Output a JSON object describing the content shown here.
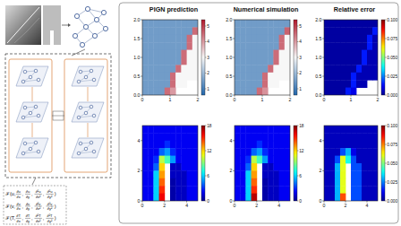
{
  "columns": [
    "PIGN prediction",
    "Numerical simulation",
    "Relative error"
  ],
  "equations": [
    [
      "ℱ(u,",
      {
        "num": "∂u",
        "den": "∂x"
      },
      ",",
      {
        "num": "∂u",
        "den": "∂y"
      },
      ",",
      {
        "num": "∂²u",
        "den": "∂x²"
      },
      ",",
      {
        "num": "∂²u",
        "den": "∂y²"
      },
      ")"
    ],
    [
      "ℱ(v,",
      {
        "num": "∂v",
        "den": "∂x"
      },
      ",",
      {
        "num": "∂v",
        "den": "∂y"
      },
      ",",
      {
        "num": "∂²v",
        "den": "∂x²"
      },
      ",",
      {
        "num": "∂²v",
        "den": "∂y²"
      },
      ")"
    ],
    [
      "ℱ(T,",
      {
        "num": "∂T",
        "den": "∂x"
      },
      ",",
      {
        "num": "∂T",
        "den": "∂y"
      },
      ",",
      {
        "num": "∂²T",
        "den": "∂x²"
      },
      ",",
      {
        "num": "∂²T",
        "den": "∂y²"
      },
      ")"
    ]
  ],
  "chart_data": [
    {
      "type": "heatmap",
      "xlim": [
        0,
        2
      ],
      "ylim": [
        0,
        2
      ],
      "xticks": [
        0,
        1,
        2
      ],
      "yticks": [
        {
          "value": 0,
          "label": "0.0"
        },
        {
          "value": 0.5,
          "label": "0.5"
        },
        {
          "value": 1,
          "label": "1.0"
        },
        {
          "value": 1.5,
          "label": "1.5"
        },
        {
          "value": 2,
          "label": "2.0"
        }
      ],
      "cells": [
        [
          1.5,
          1.5,
          1.5,
          1.5,
          1.5,
          1.5,
          1.5,
          1.5,
          1.5,
          1.5
        ],
        [
          1.5,
          1.5,
          1.5,
          1.5,
          1.5,
          1.5,
          1.5,
          1.5,
          1.5,
          4.5
        ],
        [
          1.5,
          1.5,
          1.5,
          1.5,
          1.5,
          1.5,
          1.5,
          1.5,
          4.5,
          3.0
        ],
        [
          1.5,
          1.5,
          1.5,
          1.5,
          1.5,
          1.5,
          1.5,
          1.5,
          4.5,
          3.0
        ],
        [
          1.5,
          1.5,
          1.5,
          1.5,
          1.5,
          1.5,
          1.5,
          4.5,
          3.0,
          3.0
        ],
        [
          1.5,
          1.5,
          1.5,
          1.5,
          1.5,
          1.5,
          1.5,
          4.5,
          3.0,
          3.0
        ],
        [
          1.5,
          1.5,
          1.5,
          1.5,
          1.5,
          1.5,
          4.5,
          3.0,
          3.0,
          3.0
        ],
        [
          1.5,
          1.5,
          1.5,
          1.5,
          1.5,
          4.5,
          3.0,
          3.0,
          3.0,
          3.0
        ],
        [
          1.5,
          1.5,
          1.5,
          1.5,
          1.5,
          4.5,
          3.0,
          3.0,
          null,
          null
        ],
        [
          1.5,
          1.5,
          1.5,
          1.5,
          4.5,
          4.0,
          null,
          null,
          null,
          null
        ]
      ],
      "colorbar": {
        "range": [
          0.6,
          5.4
        ],
        "ticks": [
          1,
          2,
          3,
          4,
          5
        ]
      }
    },
    {
      "type": "heatmap",
      "xlim": [
        0,
        2
      ],
      "ylim": [
        0,
        2
      ],
      "xticks": [
        0,
        1,
        2
      ],
      "yticks": [
        {
          "value": 0,
          "label": "0.0"
        },
        {
          "value": 0.5,
          "label": "0.5"
        },
        {
          "value": 1,
          "label": "1.0"
        },
        {
          "value": 1.5,
          "label": "1.5"
        },
        {
          "value": 2,
          "label": "2.0"
        }
      ],
      "cells": [
        [
          1.5,
          1.5,
          1.5,
          1.5,
          1.5,
          1.5,
          1.5,
          1.5,
          1.5,
          1.5
        ],
        [
          1.5,
          1.5,
          1.5,
          1.5,
          1.5,
          1.5,
          1.5,
          1.5,
          1.5,
          4.6
        ],
        [
          1.5,
          1.5,
          1.5,
          1.5,
          1.5,
          1.5,
          1.5,
          1.5,
          4.5,
          3.0
        ],
        [
          1.5,
          1.5,
          1.5,
          1.5,
          1.5,
          1.5,
          1.5,
          1.5,
          4.5,
          3.0
        ],
        [
          1.5,
          1.5,
          1.5,
          1.5,
          1.5,
          1.5,
          1.5,
          4.5,
          3.0,
          3.0
        ],
        [
          1.5,
          1.5,
          1.5,
          1.5,
          1.5,
          1.5,
          1.5,
          4.5,
          3.0,
          3.0
        ],
        [
          1.5,
          1.5,
          1.5,
          1.5,
          1.5,
          1.5,
          4.5,
          3.0,
          3.0,
          3.0
        ],
        [
          1.5,
          1.5,
          1.5,
          1.5,
          1.5,
          4.5,
          3.0,
          3.0,
          3.0,
          3.0
        ],
        [
          1.5,
          1.5,
          1.5,
          1.5,
          1.5,
          4.5,
          3.0,
          3.0,
          null,
          null
        ],
        [
          1.5,
          1.5,
          1.5,
          1.5,
          4.5,
          4.1,
          null,
          null,
          null,
          null
        ]
      ],
      "colorbar": {
        "range": [
          0.6,
          5.4
        ],
        "ticks": [
          1,
          2,
          3,
          4,
          5
        ]
      }
    },
    {
      "type": "heatmap",
      "xlim": [
        0,
        2
      ],
      "ylim": [
        0,
        2
      ],
      "xticks": [
        0,
        1,
        2
      ],
      "yticks": [
        {
          "value": 0,
          "label": "0.0"
        },
        {
          "value": 0.5,
          "label": "0.5"
        },
        {
          "value": 1,
          "label": "1.0"
        },
        {
          "value": 1.5,
          "label": "1.5"
        },
        {
          "value": 2,
          "label": "2.0"
        }
      ],
      "cells": [
        [
          0.002,
          0.002,
          0.002,
          0.002,
          0.002,
          0.002,
          0.002,
          0.002,
          0.002,
          0.002
        ],
        [
          0.002,
          0.002,
          0.002,
          0.002,
          0.002,
          0.002,
          0.002,
          0.002,
          0.002,
          0.015
        ],
        [
          0.002,
          0.002,
          0.002,
          0.002,
          0.002,
          0.002,
          0.002,
          0.002,
          0.015,
          0.004
        ],
        [
          0.002,
          0.002,
          0.002,
          0.002,
          0.002,
          0.002,
          0.002,
          0.002,
          0.015,
          0.004
        ],
        [
          0.002,
          0.002,
          0.002,
          0.002,
          0.002,
          0.002,
          0.002,
          0.015,
          0.004,
          0.004
        ],
        [
          0.002,
          0.002,
          0.002,
          0.002,
          0.002,
          0.002,
          0.002,
          0.015,
          0.004,
          0.004
        ],
        [
          0.002,
          0.002,
          0.002,
          0.002,
          0.002,
          0.002,
          0.015,
          0.004,
          0.004,
          0.004
        ],
        [
          0.002,
          0.002,
          0.002,
          0.002,
          0.002,
          0.015,
          0.004,
          0.004,
          0.004,
          0.004
        ],
        [
          0.002,
          0.002,
          0.002,
          0.002,
          0.002,
          0.015,
          0.004,
          0.004,
          null,
          null
        ],
        [
          0.002,
          0.002,
          0.002,
          0.002,
          0.015,
          0.01,
          null,
          null,
          null,
          null
        ]
      ],
      "colorbar": {
        "range": [
          0,
          0.1
        ],
        "ticks": [
          {
            "value": 0,
            "label": "0.000"
          },
          {
            "value": 0.025,
            "label": "0.025"
          },
          {
            "value": 0.05,
            "label": "0.050"
          },
          {
            "value": 0.075,
            "label": "0.075"
          },
          {
            "value": 0.1,
            "label": "0.100"
          }
        ]
      }
    },
    {
      "type": "heatmap",
      "xlim": [
        0,
        5
      ],
      "ylim": [
        0,
        5
      ],
      "xticks": [
        0,
        2,
        4
      ],
      "yticks": [
        0,
        2,
        4
      ],
      "cells": [
        [
          2,
          2,
          2,
          2,
          2,
          2,
          2,
          2,
          2,
          2
        ],
        [
          2,
          2,
          2,
          2,
          2,
          2,
          2,
          2,
          2,
          2
        ],
        [
          2,
          2,
          2,
          2,
          3,
          2,
          2,
          2,
          2,
          2
        ],
        [
          2,
          2,
          2,
          4,
          5,
          3,
          2,
          2,
          2,
          2
        ],
        [
          2,
          2,
          3,
          10,
          8,
          5,
          2,
          2,
          2,
          2
        ],
        [
          2,
          2,
          4,
          12,
          null,
          1,
          1,
          2,
          2,
          2
        ],
        [
          2,
          2,
          6,
          13,
          null,
          1,
          1,
          1,
          2,
          2
        ],
        [
          2,
          2,
          6,
          14,
          null,
          0.5,
          1,
          1,
          2,
          2
        ],
        [
          2,
          2,
          6,
          15,
          null,
          0.5,
          1,
          1,
          2,
          2
        ],
        [
          2,
          2,
          6,
          16,
          null,
          0.5,
          1,
          1,
          2,
          2
        ]
      ],
      "colorbar": {
        "range": [
          0,
          18
        ],
        "ticks": [
          0,
          6,
          12,
          18
        ]
      }
    },
    {
      "type": "heatmap",
      "xlim": [
        0,
        5
      ],
      "ylim": [
        0,
        5
      ],
      "xticks": [
        0,
        2,
        4
      ],
      "yticks": [
        0,
        2,
        4
      ],
      "cells": [
        [
          2,
          2,
          2,
          2,
          2,
          2,
          2,
          2,
          2,
          2
        ],
        [
          2,
          2,
          2,
          2,
          2,
          2,
          2,
          2,
          2,
          2
        ],
        [
          2,
          2,
          2,
          2,
          3,
          2,
          2,
          2,
          2,
          2
        ],
        [
          2,
          2,
          2,
          4,
          5,
          3,
          2,
          2,
          2,
          2
        ],
        [
          2,
          2,
          3,
          10,
          8,
          5,
          2,
          2,
          2,
          2
        ],
        [
          2,
          2,
          4,
          12,
          null,
          1,
          1,
          2,
          2,
          2
        ],
        [
          2,
          2,
          6,
          13,
          null,
          1,
          1,
          1,
          2,
          2
        ],
        [
          2,
          2,
          6,
          14,
          null,
          0.5,
          1,
          1,
          2,
          2
        ],
        [
          2,
          2,
          6,
          15,
          null,
          0.5,
          1,
          1,
          2,
          2
        ],
        [
          2,
          2,
          6,
          17,
          null,
          0.5,
          1,
          1,
          2,
          2
        ]
      ],
      "colorbar": {
        "range": [
          0,
          18
        ],
        "ticks": [
          0,
          6,
          12,
          18
        ]
      }
    },
    {
      "type": "heatmap",
      "xlim": [
        0,
        5
      ],
      "ylim": [
        0,
        5
      ],
      "xticks": [
        0,
        2,
        4
      ],
      "yticks": [
        0,
        2,
        4
      ],
      "cells": [
        [
          0.005,
          0.005,
          0.005,
          0.005,
          0.005,
          0.005,
          0.005,
          0.005,
          0.005,
          0.005
        ],
        [
          0.005,
          0.005,
          0.005,
          0.005,
          0.005,
          0.005,
          0.005,
          0.005,
          0.005,
          0.005
        ],
        [
          0.005,
          0.005,
          0.005,
          0.005,
          0.005,
          0.005,
          0.005,
          0.005,
          0.005,
          0.005
        ],
        [
          0.005,
          0.005,
          0.005,
          0.02,
          0.03,
          0.01,
          0.005,
          0.005,
          0.005,
          0.005
        ],
        [
          0.005,
          0.005,
          0.02,
          0.06,
          0.04,
          0.02,
          0.005,
          0.005,
          0.005,
          0.005
        ],
        [
          0.005,
          0.005,
          0.03,
          0.06,
          null,
          0.02,
          0.02,
          0.005,
          0.005,
          0.005
        ],
        [
          0.005,
          0.005,
          0.03,
          0.06,
          null,
          0.02,
          0.02,
          0.005,
          0.005,
          0.005
        ],
        [
          0.005,
          0.005,
          0.03,
          0.06,
          null,
          0.02,
          0.02,
          0.005,
          0.005,
          0.005
        ],
        [
          0.005,
          0.005,
          0.03,
          0.06,
          null,
          0.02,
          0.02,
          0.005,
          0.005,
          0.005
        ],
        [
          0.005,
          0.005,
          0.03,
          0.08,
          null,
          0.02,
          0.02,
          0.005,
          0.005,
          0.005
        ]
      ],
      "colorbar": {
        "range": [
          0,
          0.1
        ],
        "ticks": [
          {
            "value": 0,
            "label": "0.000"
          },
          {
            "value": 0.025,
            "label": "0.025"
          },
          {
            "value": 0.05,
            "label": "0.050"
          },
          {
            "value": 0.075,
            "label": "0.075"
          },
          {
            "value": 0.1,
            "label": "0.100"
          }
        ]
      }
    }
  ]
}
